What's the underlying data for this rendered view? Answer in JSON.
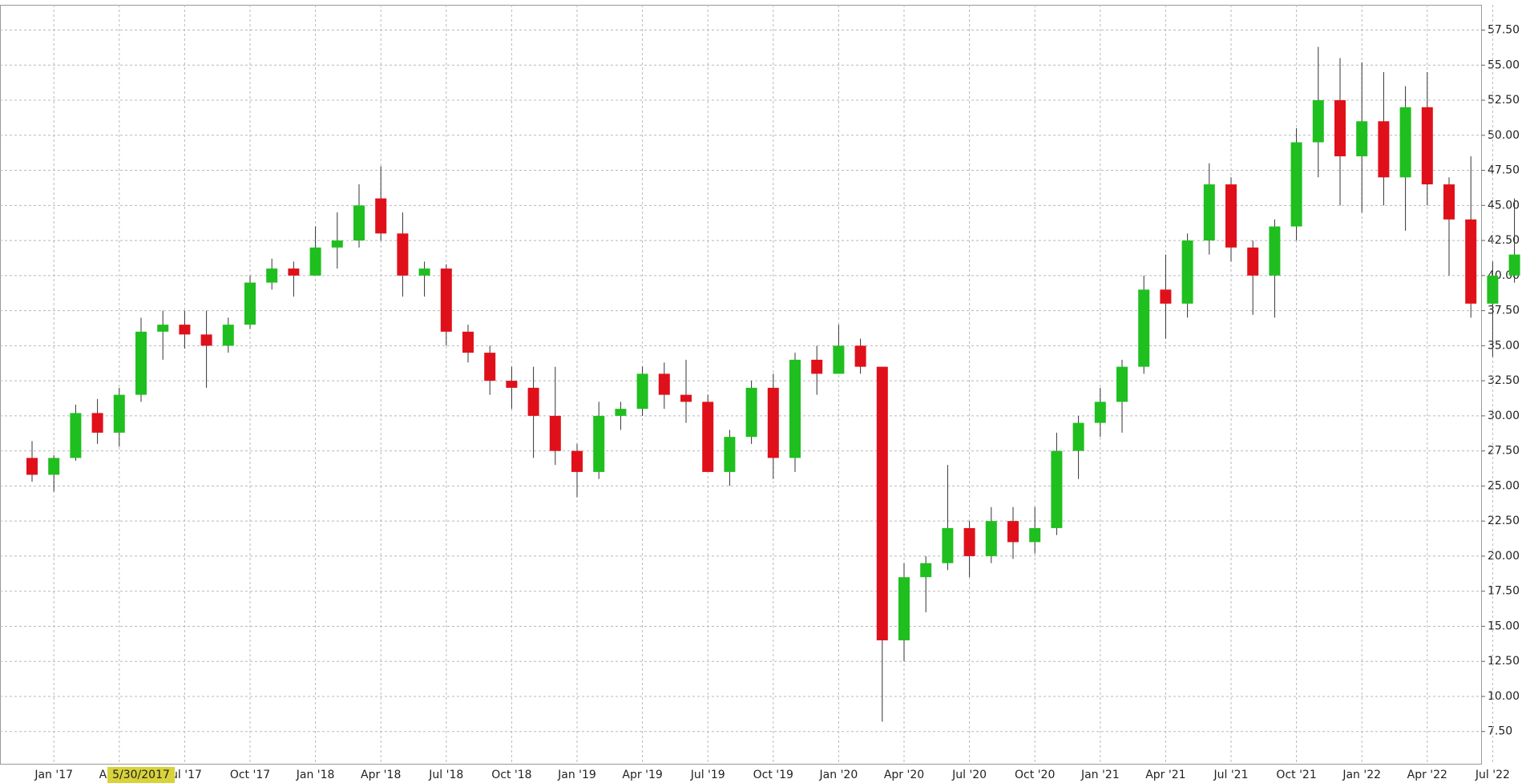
{
  "chart_data": {
    "type": "candlestick",
    "categories": [
      null,
      "Jan '17",
      null,
      null,
      "Apr '17",
      null,
      null,
      "Jul '17",
      null,
      null,
      "Oct '17",
      null,
      null,
      "Jan '18",
      null,
      null,
      "Apr '18",
      null,
      null,
      "Jul '18",
      null,
      null,
      "Oct '18",
      null,
      null,
      "Jan '19",
      null,
      null,
      "Apr '19",
      null,
      null,
      "Jul '19",
      null,
      null,
      "Oct '19",
      null,
      null,
      "Jan '20",
      null,
      null,
      "Apr '20",
      null,
      null,
      "Jul '20",
      null,
      null,
      "Oct '20",
      null,
      null,
      "Jan '21",
      null,
      null,
      "Apr '21",
      null,
      null,
      "Jul '21",
      null,
      null,
      "Oct '21",
      null,
      null,
      "Jan '22",
      null,
      null,
      "Apr '22",
      null,
      null,
      "Jul '22",
      null
    ],
    "open": [
      27,
      25.8,
      27,
      30.2,
      28.8,
      31.5,
      36,
      36.5,
      35.8,
      35,
      36.5,
      39.5,
      40.5,
      40,
      42,
      42.5,
      45.5,
      43,
      40,
      40.5,
      36,
      34.5,
      32.5,
      32,
      30,
      27.5,
      26,
      30,
      30.5,
      33,
      31.5,
      31,
      26,
      28.5,
      32,
      27,
      34,
      33,
      35,
      33.5,
      14,
      18.5,
      19.5,
      22,
      20,
      22.5,
      21,
      22,
      27.5,
      29.5,
      31,
      33.5,
      39,
      38,
      42.5,
      46.5,
      42,
      40,
      43.5,
      49.5,
      52.5,
      48.5,
      51,
      47,
      52,
      46.5,
      44,
      38,
      40
    ],
    "high": [
      28.2,
      27.2,
      30.8,
      31.2,
      32,
      37,
      37.5,
      37.5,
      37.5,
      37,
      40,
      41.2,
      41,
      43.5,
      44.5,
      46.5,
      47.8,
      44.5,
      41,
      40.8,
      36.5,
      35,
      33.5,
      33.5,
      33.5,
      28,
      31,
      31,
      33.5,
      33.8,
      34,
      31.5,
      29,
      32.5,
      33,
      34.5,
      35,
      36.5,
      35.5,
      33.5,
      19.5,
      20,
      26.5,
      22.5,
      23.5,
      23.5,
      23.5,
      28.8,
      30,
      32,
      34,
      40,
      41.5,
      43,
      48,
      47,
      42.5,
      44,
      50.5,
      56.3,
      55.5,
      55.2,
      54.5,
      53.5,
      54.5,
      47,
      48.5,
      41,
      45.5
    ],
    "low": [
      25.3,
      24.6,
      26.8,
      28,
      27.8,
      31,
      34,
      34.8,
      32,
      34.5,
      36.2,
      39,
      38.5,
      40,
      40.5,
      42,
      42.5,
      38.5,
      38.5,
      35,
      33.8,
      31.5,
      30.5,
      27,
      26.5,
      24.2,
      25.5,
      29,
      30,
      30.5,
      29.5,
      26,
      25,
      28,
      25.5,
      26,
      31.5,
      33,
      33,
      8.2,
      12.5,
      16,
      19,
      18.5,
      19.5,
      19.8,
      20.2,
      21.5,
      25.5,
      28.5,
      28.8,
      33,
      35.5,
      37,
      41.5,
      41,
      37.2,
      37,
      42.5,
      47,
      45,
      44.5,
      45,
      43.2,
      45,
      40,
      37,
      34.2,
      39.5
    ],
    "close": [
      25.8,
      27,
      30.2,
      28.8,
      31.5,
      36,
      36.5,
      35.8,
      35,
      36.5,
      39.5,
      40.5,
      40,
      42,
      42.5,
      45,
      43,
      40,
      40.5,
      36,
      34.5,
      32.5,
      32,
      30,
      27.5,
      26,
      30,
      30.5,
      33,
      31.5,
      31,
      26,
      28.5,
      32,
      27,
      34,
      33,
      35,
      33.5,
      14,
      18.5,
      19.5,
      22,
      20,
      22.5,
      21,
      22,
      27.5,
      29.5,
      31,
      33.5,
      39,
      38,
      42.5,
      46.5,
      42,
      40,
      43.5,
      49.5,
      52.5,
      48.5,
      51,
      47,
      52,
      46.5,
      44,
      38,
      40,
      41.5
    ],
    "up_color": "#1fbf1f",
    "down_color": "#e0101a",
    "wick_color": "#333333",
    "ylim": [
      5.2,
      59.3
    ],
    "yticks": [
      {
        "value": 7.5,
        "label": "7.50"
      },
      {
        "value": 10,
        "label": "10.00"
      },
      {
        "value": 12.5,
        "label": "12.50"
      },
      {
        "value": 15,
        "label": "15.00"
      },
      {
        "value": 17.5,
        "label": "17.50"
      },
      {
        "value": 20,
        "label": "20.00"
      },
      {
        "value": 22.5,
        "label": "22.50"
      },
      {
        "value": 25,
        "label": "25.00"
      },
      {
        "value": 27.5,
        "label": "27.50"
      },
      {
        "value": 30,
        "label": "30.00"
      },
      {
        "value": 32.5,
        "label": "32.50"
      },
      {
        "value": 35,
        "label": "35.00"
      },
      {
        "value": 37.5,
        "label": "37.50"
      },
      {
        "value": 40,
        "label": "40.00"
      },
      {
        "value": 42.5,
        "label": "42.50"
      },
      {
        "value": 45,
        "label": "45.00"
      },
      {
        "value": 47.5,
        "label": "47.50"
      },
      {
        "value": 50,
        "label": "50.00"
      },
      {
        "value": 52.5,
        "label": "52.50"
      },
      {
        "value": 55,
        "label": "55.00"
      },
      {
        "value": 57.5,
        "label": "57.50"
      }
    ],
    "grid": true,
    "crosshair_label": "5/30/2017",
    "crosshair_index": 5
  }
}
